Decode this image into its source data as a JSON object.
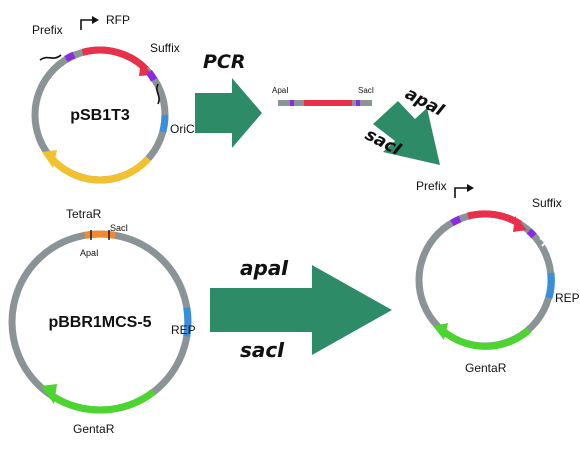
{
  "plasmid_pSB1T3": {
    "name": "pSB1T3",
    "prefix": "Prefix",
    "rfp": "RFP",
    "suffix": "Suffix",
    "oric": "OriC",
    "tetrar": "TetraR"
  },
  "pcr_step": {
    "label": "PCR",
    "insert_left": "ApaI",
    "insert_right": "SacI"
  },
  "digest_top": {
    "enzyme1": "apaI",
    "enzyme2": "sacI"
  },
  "plasmid_pBBR1MCS5": {
    "name": "pBBR1MCS-5",
    "apai": "ApaI",
    "saci": "SacI",
    "rep": "REP",
    "gentar": "GentaR"
  },
  "digest_bottom": {
    "enzyme1": "apaI",
    "enzyme2": "sacI"
  },
  "result_plasmid": {
    "prefix": "Prefix",
    "suffix": "Suffix",
    "rep": "REP",
    "gentar": "GentaR"
  },
  "colors": {
    "backbone": "#8a9396",
    "rfp": "#e8304a",
    "site": "#8a2be2",
    "oric": "#3a8fdc",
    "tetrar": "#f2c12e",
    "gentar": "#4cd42f",
    "arrow": "#2e8b68",
    "mcs": "#f08a30"
  }
}
